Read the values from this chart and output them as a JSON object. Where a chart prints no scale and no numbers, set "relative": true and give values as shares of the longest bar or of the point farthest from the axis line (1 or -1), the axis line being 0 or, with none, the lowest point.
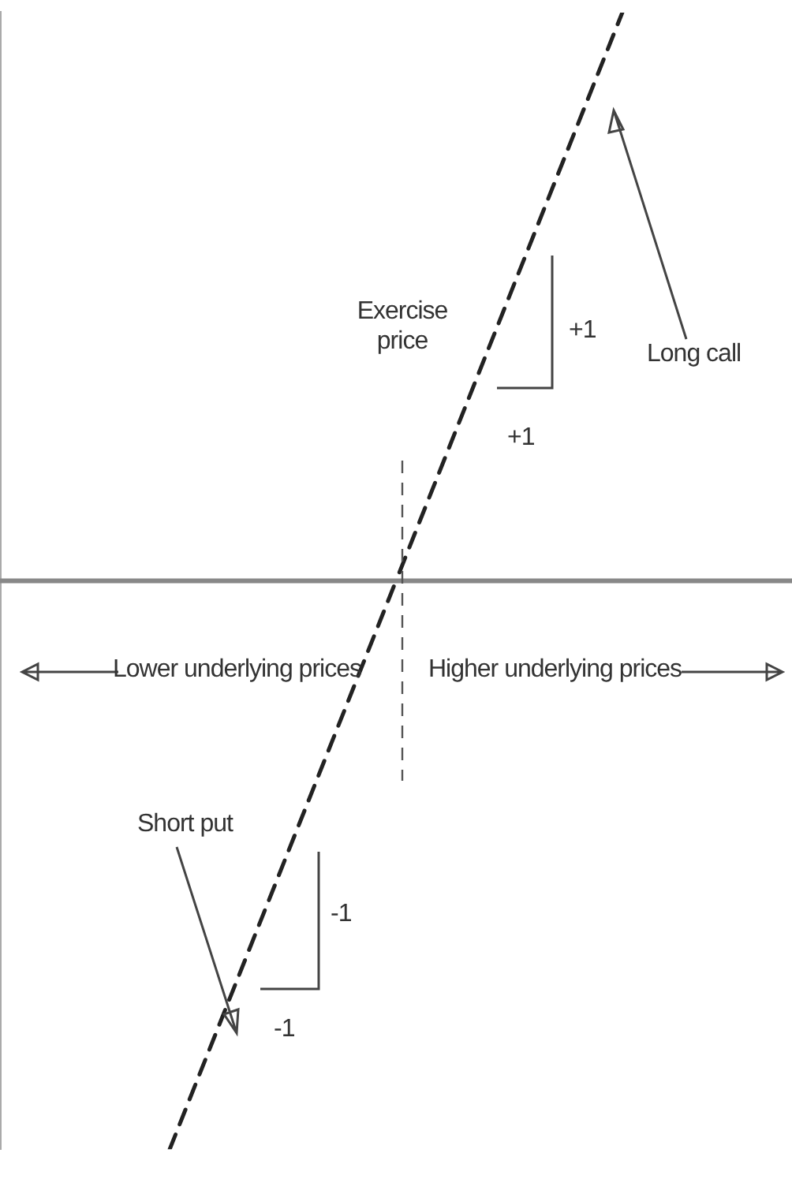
{
  "chart_data": {
    "type": "line",
    "relative": true,
    "categories": [
      null,
      null,
      null,
      null,
      null,
      null,
      null
    ],
    "series": [
      {
        "name": "Long call",
        "color": "#222222",
        "values": [
          0,
          0,
          0,
          0,
          0.5,
          1,
          null
        ]
      },
      {
        "name": "Short put",
        "color": "#222222",
        "values": [
          null,
          -1,
          -0.5,
          0,
          0,
          0,
          0
        ]
      }
    ],
    "line_style": "dashed",
    "marker": "none",
    "grid": false,
    "legend": false,
    "annotations": [
      "+1",
      "+1",
      "-1",
      "-1",
      "Lower underlying prices",
      "Higher underlying prices",
      "Exercise price"
    ]
  }
}
